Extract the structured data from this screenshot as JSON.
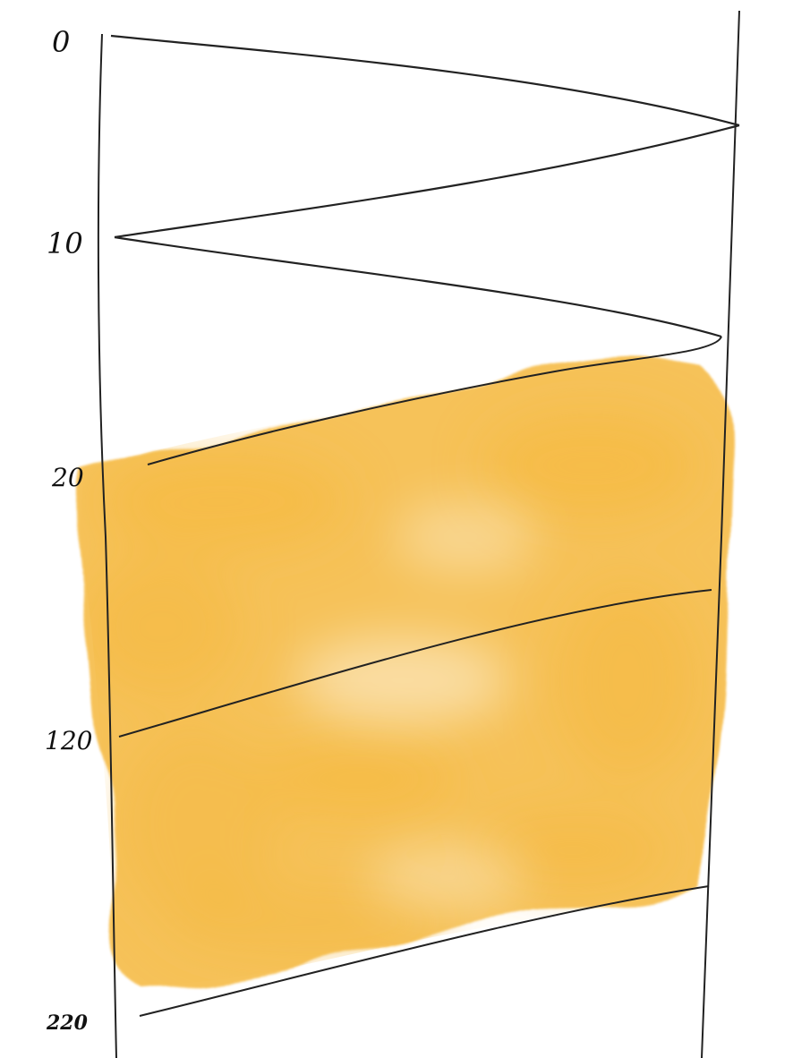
{
  "diagram": {
    "row_labels": [
      "0",
      "10",
      "20",
      "120",
      "220"
    ],
    "highlight_color": "#f5b83d",
    "line_color": "#222222"
  }
}
